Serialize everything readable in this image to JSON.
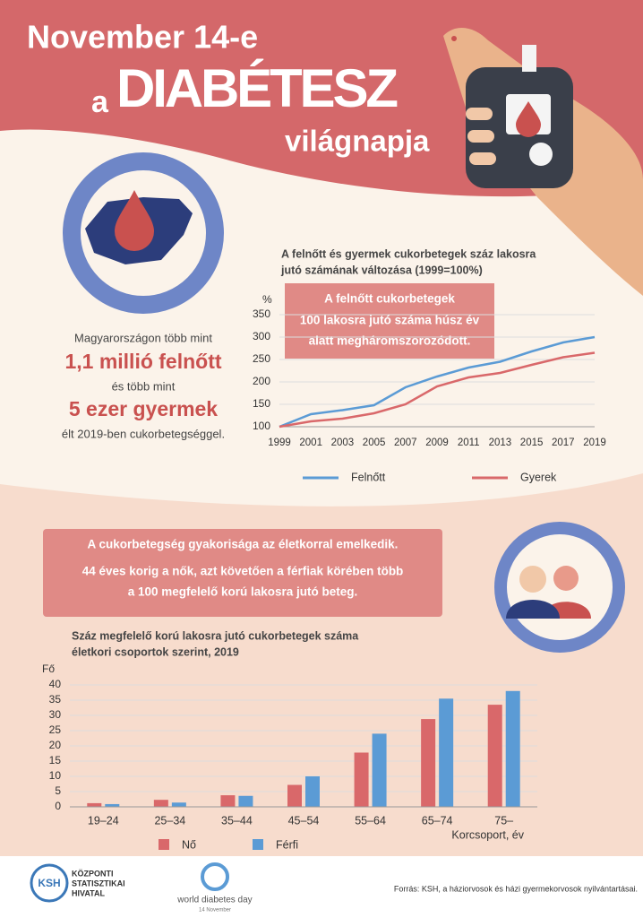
{
  "header": {
    "line1": "November 14-e",
    "prefix": "a",
    "main": "DIABÉTESZ",
    "line3": "világnapja"
  },
  "stats": [
    "Magyarországon több mint",
    "1,1 millió felnőtt",
    "és több mint",
    "5 ezer gyermek",
    "élt 2019-ben cukorbetegséggel."
  ],
  "callouts": {
    "first": [
      "A felnőtt cukorbetegek",
      "100 lakosra jutó száma húsz év",
      "alatt  megháromszorozódott."
    ],
    "second": [
      "A cukorbetegség gyakorisága az életkorral emelkedik.",
      "44 éves korig a nők, azt követően a férfiak körében több",
      "a 100 megfelelő korú lakosra jutó beteg."
    ]
  },
  "chart_data": [
    {
      "type": "line",
      "title": [
        "A felnőtt és gyermek cukorbetegek száz lakosra",
        "jutó számának változása (1999=100%)"
      ],
      "y_label": "%",
      "x": [
        1999,
        2001,
        2003,
        2005,
        2007,
        2009,
        2011,
        2013,
        2015,
        2017,
        2019
      ],
      "xlim": [
        1999,
        2019
      ],
      "xticks": [
        1999,
        2001,
        2003,
        2005,
        2007,
        2009,
        2011,
        2013,
        2015,
        2017,
        2019
      ],
      "ylim": [
        100,
        350
      ],
      "yticks": [
        100,
        150,
        200,
        250,
        300,
        350
      ],
      "grid": true,
      "series": [
        {
          "name": "Felnőtt",
          "color": "#5b9bd5",
          "values": [
            100,
            128,
            137,
            148,
            188,
            212,
            232,
            245,
            268,
            288,
            300
          ]
        },
        {
          "name": "Gyerek",
          "color": "#d9686a",
          "values": [
            100,
            112,
            118,
            130,
            150,
            190,
            210,
            220,
            238,
            255,
            265
          ]
        }
      ]
    },
    {
      "type": "bar",
      "title": [
        "Száz megfelelő korú lakosra jutó cukorbetegek száma",
        "életkori csoportok szerint, 2019"
      ],
      "y_label": "Fő",
      "x_label": "Korcsoport, év",
      "categories": [
        "19–24",
        "25–34",
        "35–44",
        "45–54",
        "55–64",
        "65–74",
        "75–"
      ],
      "ylim": [
        0,
        40
      ],
      "yticks": [
        0,
        5,
        10,
        15,
        20,
        25,
        30,
        35,
        40
      ],
      "grid": true,
      "series": [
        {
          "name": "Nő",
          "color": "#d9686a",
          "values": [
            1.2,
            2.3,
            3.8,
            7.2,
            17.8,
            28.8,
            33.5
          ]
        },
        {
          "name": "Férfi",
          "color": "#5b9bd5",
          "values": [
            0.9,
            1.4,
            3.6,
            10,
            24,
            35.5,
            38
          ]
        }
      ]
    }
  ],
  "footer": {
    "ksh": [
      "KSH",
      "KÖZPONTI",
      "STATISZTIKAI",
      "HIVATAL"
    ],
    "wdd": [
      "world diabetes day",
      "14 November"
    ],
    "source": "Forrás: KSH, a háziorvosok és házi gyermekorvosok nyilvántartásai."
  }
}
